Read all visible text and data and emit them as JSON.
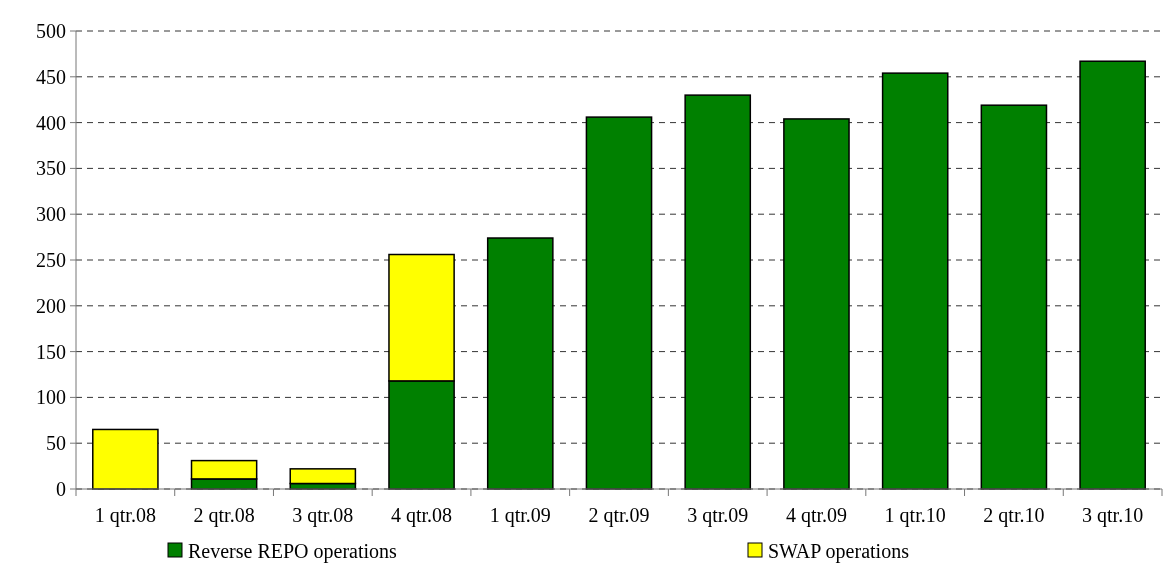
{
  "chart_data": {
    "type": "bar",
    "stacked": true,
    "categories": [
      "1 qtr.08",
      "2 qtr.08",
      "3 qtr.08",
      "4 qtr.08",
      "1 qtr.09",
      "2 qtr.09",
      "3 qtr.09",
      "4 qtr.09",
      "1 qtr.10",
      "2 qtr.10",
      "3 qtr.10"
    ],
    "series": [
      {
        "name": "Reverse REPO operations",
        "color": "#008000",
        "values": [
          0,
          11,
          6,
          118,
          274,
          406,
          430,
          404,
          454,
          419,
          467
        ]
      },
      {
        "name": "SWAP operations",
        "color": "#ffff00",
        "values": [
          65,
          20,
          16,
          138,
          0,
          0,
          0,
          0,
          0,
          0,
          0
        ]
      }
    ],
    "ylim": [
      0,
      500
    ],
    "yticks": [
      0,
      50,
      100,
      150,
      200,
      250,
      300,
      350,
      400,
      450,
      500
    ],
    "grid": "y",
    "legend": "bottom"
  }
}
